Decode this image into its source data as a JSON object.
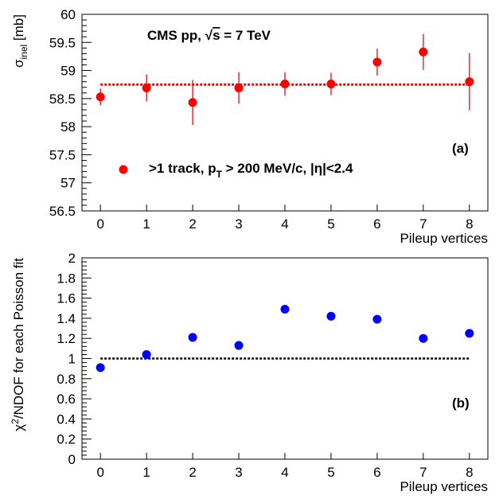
{
  "chart_data": [
    {
      "panel_label": "(a)",
      "type": "scatter",
      "annotation": "CMS pp, √s = 7 TeV",
      "annotation_parts": {
        "prefix": "CMS pp, ",
        "sqrt": "√",
        "s_var": "s",
        "suffix": " = 7 TeV"
      },
      "legend": {
        "placement": "bottom-left",
        "parts": {
          "a": ">1 track, p",
          "sub": "T",
          "b": " > 200 MeV/c, |η|<2.4"
        }
      },
      "ylabel": {
        "main": "σ",
        "sub": "inel",
        "unit": " [mb]"
      },
      "xlabel": "Pileup vertices",
      "xlim": [
        -0.4,
        8.4
      ],
      "ylim": [
        56.5,
        60
      ],
      "x_ticks": [
        "0",
        "1",
        "2",
        "3",
        "4",
        "5",
        "6",
        "7",
        "8"
      ],
      "y_ticks": [
        "56.5",
        "57",
        "57.5",
        "58",
        "58.5",
        "59",
        "59.5",
        "60"
      ],
      "marker_color": "#ff0000",
      "fit_line": {
        "x_range": [
          0,
          8
        ],
        "y": 58.75,
        "style": "dotted",
        "color": "#ff0000"
      },
      "x": [
        0,
        1,
        2,
        3,
        4,
        5,
        6,
        7,
        8
      ],
      "y": [
        58.53,
        58.69,
        58.43,
        58.69,
        58.76,
        58.76,
        59.15,
        59.33,
        58.8
      ],
      "y_err": [
        0.15,
        0.24,
        0.4,
        0.28,
        0.21,
        0.2,
        0.24,
        0.32,
        0.51
      ]
    },
    {
      "panel_label": "(b)",
      "type": "scatter",
      "ylabel": "χ²/NDOF for each Poisson fit",
      "ylabel_parts": {
        "chi": "χ",
        "sup": "2",
        "rest": "/NDOF for each Poisson fit"
      },
      "xlabel": "Pileup vertices",
      "xlim": [
        -0.4,
        8.4
      ],
      "ylim": [
        0,
        2
      ],
      "x_ticks": [
        "0",
        "1",
        "2",
        "3",
        "4",
        "5",
        "6",
        "7",
        "8"
      ],
      "y_ticks": [
        "0",
        "0.2",
        "0.4",
        "0.6",
        "0.8",
        "1",
        "1.2",
        "1.4",
        "1.6",
        "1.8",
        "2"
      ],
      "marker_color": "#0000ff",
      "ref_line": {
        "x_range": [
          0,
          8
        ],
        "y": 1.0,
        "style": "dotted",
        "color": "#000000"
      },
      "x": [
        0,
        1,
        2,
        3,
        4,
        5,
        6,
        7,
        8
      ],
      "y": [
        0.91,
        1.04,
        1.21,
        1.13,
        1.49,
        1.42,
        1.39,
        1.2,
        1.25
      ]
    }
  ]
}
